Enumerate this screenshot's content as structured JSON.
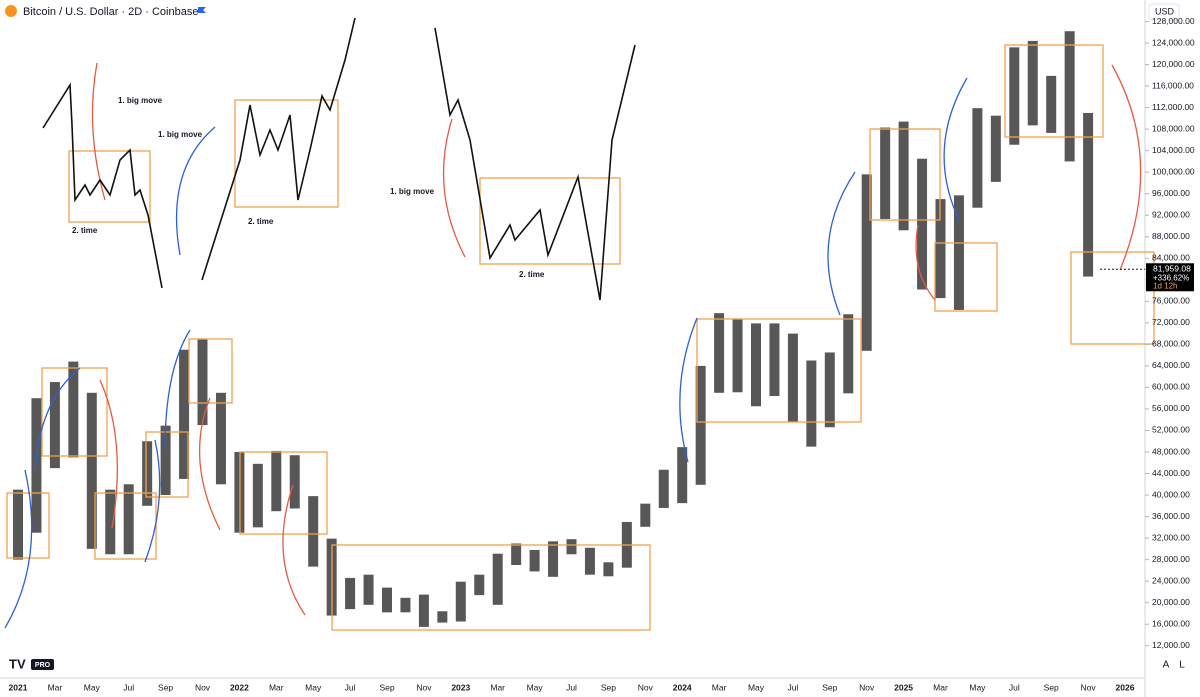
{
  "chart_data": {
    "type": "range-bar",
    "title": "Bitcoin / U.S. Dollar · 2D · Coinbase",
    "currency": "USD",
    "categories": [
      "2021",
      null,
      "Mar",
      null,
      "May",
      null,
      "Jul",
      null,
      "Sep",
      null,
      "Nov",
      null,
      "2022",
      null,
      "Mar",
      null,
      "May",
      null,
      "Jul",
      null,
      "Sep",
      null,
      "Nov",
      null,
      "2023",
      null,
      "Mar",
      null,
      "May",
      null,
      "Jul",
      null,
      "Sep",
      null,
      "Nov",
      null,
      "2024",
      null,
      "Mar",
      null,
      "May",
      null,
      "Jul",
      null,
      "Sep",
      null,
      "Nov",
      null,
      "2025",
      null,
      "Mar",
      null,
      "May",
      null,
      "Jul",
      null,
      "Sep",
      null,
      "Nov",
      null,
      "2026"
    ],
    "high": [
      41000,
      58000,
      61000,
      64800,
      59000,
      41000,
      42000,
      50000,
      52900,
      67000,
      69000,
      59000,
      48000,
      45800,
      48200,
      47400,
      39800,
      31900,
      24600,
      25200,
      22800,
      20900,
      21500,
      18400,
      23900,
      25200,
      29100,
      31000,
      29800,
      31400,
      31800,
      30200,
      27500,
      35000,
      38400,
      44700,
      48900,
      64000,
      73800,
      72800,
      71900,
      71900,
      70000,
      65000,
      66500,
      73600,
      99600,
      108300,
      109400,
      102500,
      95000,
      95700,
      111900,
      110500,
      123200,
      124400,
      117900,
      126200,
      111000,
      null,
      null
    ],
    "low": [
      28000,
      33000,
      45000,
      47000,
      30000,
      29000,
      29000,
      38000,
      40000,
      43000,
      53000,
      42000,
      33000,
      34000,
      37000,
      37500,
      26700,
      17600,
      18800,
      19600,
      18200,
      18200,
      15500,
      16300,
      16500,
      21400,
      19600,
      27000,
      25800,
      24800,
      29000,
      25200,
      24900,
      26500,
      34100,
      37600,
      38500,
      41900,
      59000,
      59100,
      56500,
      58400,
      53500,
      49000,
      52600,
      58900,
      66800,
      91300,
      89200,
      78200,
      76600,
      74400,
      93400,
      98200,
      105100,
      108700,
      107300,
      102000,
      80600,
      null,
      null
    ],
    "color": "#3a3a3a",
    "ylim": [
      6000,
      132000
    ],
    "yticks": [
      {
        "value": 12000,
        "label": "12,000.00"
      },
      {
        "value": 16000,
        "label": "16,000.00"
      },
      {
        "value": 20000,
        "label": "20,000.00"
      },
      {
        "value": 24000,
        "label": "24,000.00"
      },
      {
        "value": 28000,
        "label": "28,000.00"
      },
      {
        "value": 32000,
        "label": "32,000.00"
      },
      {
        "value": 36000,
        "label": "36,000.00"
      },
      {
        "value": 40000,
        "label": "40,000.00"
      },
      {
        "value": 44000,
        "label": "44,000.00"
      },
      {
        "value": 48000,
        "label": "48,000.00"
      },
      {
        "value": 52000,
        "label": "52,000.00"
      },
      {
        "value": 56000,
        "label": "56,000.00"
      },
      {
        "value": 60000,
        "label": "60,000.00"
      },
      {
        "value": 64000,
        "label": "64,000.00"
      },
      {
        "value": 68000,
        "label": "68,000.00"
      },
      {
        "value": 72000,
        "label": "72,000.00"
      },
      {
        "value": 76000,
        "label": "76,000.00"
      },
      {
        "value": 80000,
        "label": "80,000.00"
      },
      {
        "value": 84000,
        "label": "84,000.00"
      },
      {
        "value": 88000,
        "label": "88,000.00"
      },
      {
        "value": 92000,
        "label": "92,000.00"
      },
      {
        "value": 96000,
        "label": "96,000.00"
      },
      {
        "value": 100000,
        "label": "100,000.00"
      },
      {
        "value": 104000,
        "label": "104,000.00"
      },
      {
        "value": 108000,
        "label": "108,000.00"
      },
      {
        "value": 112000,
        "label": "112,000.00"
      },
      {
        "value": 116000,
        "label": "116,000.00"
      },
      {
        "value": 120000,
        "label": "120,000.00"
      },
      {
        "value": 124000,
        "label": "124,000.00"
      },
      {
        "value": 128000,
        "label": "128,000.00"
      }
    ],
    "last": {
      "value": 81959.08,
      "label": "81,959.08"
    },
    "change": "+336.62%",
    "countdown": "1d 12h",
    "annotations": [
      "1. big move",
      "2. time",
      "1. big move",
      "2. time",
      "1. big move",
      "2. time"
    ],
    "logo": "PRO",
    "scale_buttons": [
      "A",
      "L"
    ]
  }
}
